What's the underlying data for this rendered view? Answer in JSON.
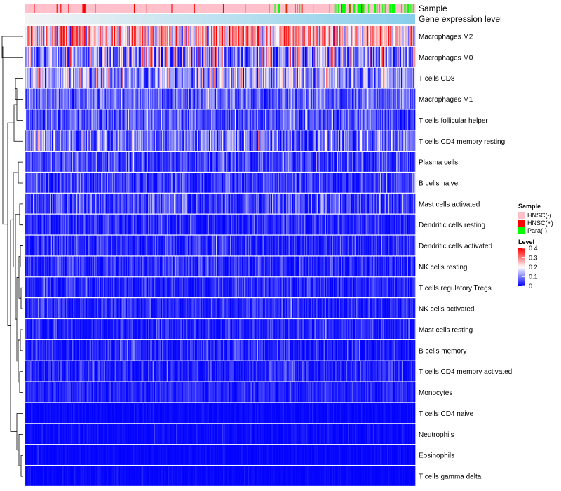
{
  "chart_data": {
    "type": "heatmap",
    "title": "",
    "rows": [
      {
        "label": "Macrophages M2",
        "mean": 0.26,
        "spread": 0.1
      },
      {
        "label": "Macrophages M0",
        "mean": 0.12,
        "spread": 0.14
      },
      {
        "label": "T cells CD8",
        "mean": 0.13,
        "spread": 0.08
      },
      {
        "label": "Macrophages M1",
        "mean": 0.08,
        "spread": 0.05
      },
      {
        "label": "T cells follicular helper",
        "mean": 0.07,
        "spread": 0.05
      },
      {
        "label": "T cells CD4 memory resting",
        "mean": 0.09,
        "spread": 0.07
      },
      {
        "label": "Plasma cells",
        "mean": 0.05,
        "spread": 0.05
      },
      {
        "label": "B cells naive",
        "mean": 0.04,
        "spread": 0.05
      },
      {
        "label": "Mast cells activated",
        "mean": 0.05,
        "spread": 0.06
      },
      {
        "label": "Dendritic cells resting",
        "mean": 0.03,
        "spread": 0.04
      },
      {
        "label": "Dendritic cells activated",
        "mean": 0.03,
        "spread": 0.04
      },
      {
        "label": "NK cells resting",
        "mean": 0.03,
        "spread": 0.04
      },
      {
        "label": "T cells regulatory  Tregs",
        "mean": 0.03,
        "spread": 0.035
      },
      {
        "label": "NK cells activated",
        "mean": 0.03,
        "spread": 0.035
      },
      {
        "label": "Mast cells resting",
        "mean": 0.025,
        "spread": 0.035
      },
      {
        "label": "B cells memory",
        "mean": 0.02,
        "spread": 0.04
      },
      {
        "label": "T cells CD4 memory activated",
        "mean": 0.02,
        "spread": 0.04
      },
      {
        "label": "Monocytes",
        "mean": 0.03,
        "spread": 0.02
      },
      {
        "label": "T cells CD4 naive",
        "mean": 0.005,
        "spread": 0.01
      },
      {
        "label": "Neutrophils",
        "mean": 0.005,
        "spread": 0.015
      },
      {
        "label": "Eosinophils",
        "mean": 0.003,
        "spread": 0.01
      },
      {
        "label": "T cells gamma delta",
        "mean": 0.002,
        "spread": 0.01
      }
    ],
    "n_samples": 500,
    "annotations": [
      {
        "label": "Sample",
        "type": "categorical"
      },
      {
        "label": "Gene expression level",
        "type": "continuous"
      }
    ],
    "sample_legend": {
      "title": "Sample",
      "entries": [
        {
          "label": "HNSC(-)",
          "color": "#ffc0cb"
        },
        {
          "label": "HNSC(+)",
          "color": "#ff0000"
        },
        {
          "label": "Para(-)",
          "color": "#00ff00"
        }
      ]
    },
    "level_legend": {
      "title": "Level",
      "ticks": [
        "0.4",
        "0.3",
        "0.2",
        "0.1",
        "0"
      ],
      "range": [
        0,
        0.4
      ],
      "colors": {
        "low": "#0000ff",
        "mid": "#ffffff",
        "high": "#ff0000"
      }
    },
    "expression_annotation_colors": {
      "start": "#f4f4f4",
      "end": "#87ceeb"
    },
    "dendrogram": "rows clustered (hierarchical)"
  }
}
